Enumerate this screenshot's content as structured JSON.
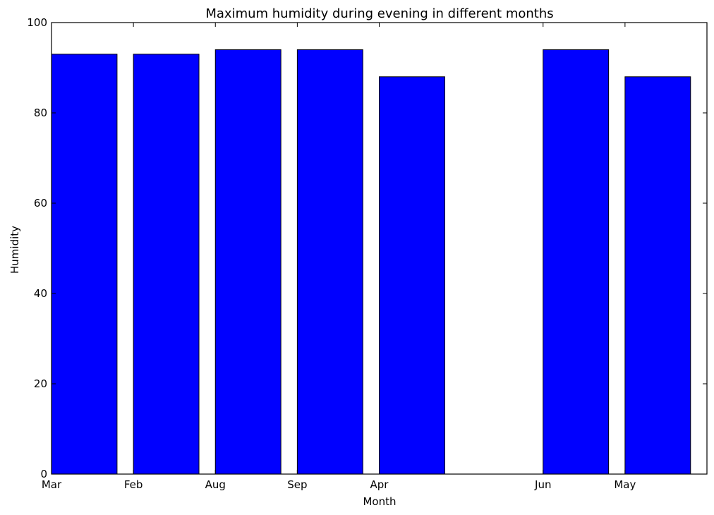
{
  "chart_data": {
    "type": "bar",
    "title": "Maximum humidity during evening in different months",
    "xlabel": "Month",
    "ylabel": "Humidity",
    "bar_color": "#0000ff",
    "edge_color": "#000000",
    "bars": [
      {
        "x": 0,
        "label": "Mar",
        "value": 93
      },
      {
        "x": 1,
        "label": "Feb",
        "value": 93
      },
      {
        "x": 2,
        "label": "Aug",
        "value": 94
      },
      {
        "x": 3,
        "label": "Sep",
        "value": 94
      },
      {
        "x": 4,
        "label": "Apr",
        "value": 88
      },
      {
        "x": 6,
        "label": "Jun",
        "value": 94
      },
      {
        "x": 7,
        "label": "May",
        "value": 88
      }
    ],
    "bar_width": 0.8,
    "xlim": [
      0,
      8
    ],
    "ylim": [
      0,
      100
    ],
    "yticks": [
      0,
      20,
      40,
      60,
      80,
      100
    ],
    "grid": false
  }
}
